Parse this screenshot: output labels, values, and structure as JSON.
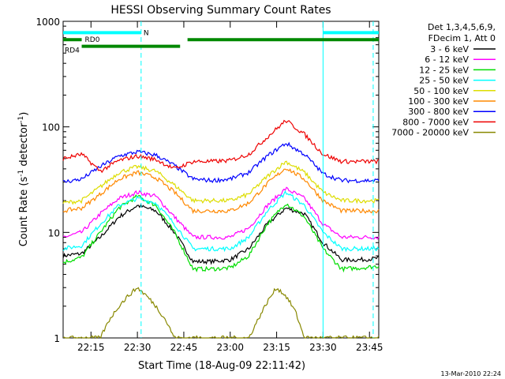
{
  "chart_data": {
    "type": "line",
    "title": "HESSI Observing Summary Count Rates",
    "xlabel": "Start Time (18-Aug-09 22:11:42)",
    "ylabel_main": "Count Rate (s",
    "ylabel_sup1": "-1",
    "ylabel_mid": " detector",
    "ylabel_sup2": "-1",
    "ylabel_end": ")",
    "y_scale": "log",
    "ylim": [
      1,
      1000
    ],
    "xlim_minutes": [
      22.1,
      23.8
    ],
    "x_ticks": [
      {
        "minute": 22.25,
        "label": "22:15"
      },
      {
        "minute": 22.5,
        "label": "22:30"
      },
      {
        "minute": 22.75,
        "label": "22:45"
      },
      {
        "minute": 23.0,
        "label": "23:00"
      },
      {
        "minute": 23.25,
        "label": "23:15"
      },
      {
        "minute": 23.5,
        "label": "23:30"
      },
      {
        "minute": 23.75,
        "label": "23:45"
      }
    ],
    "y_ticks": [
      {
        "value": 1,
        "label": "1"
      },
      {
        "value": 10,
        "label": "10"
      },
      {
        "value": 100,
        "label": "100"
      },
      {
        "value": 1000,
        "label": "1000"
      }
    ],
    "legend_header": [
      "Det 1,3,4,5,6,9,",
      "FDecim 1, Att 0"
    ],
    "legend_position": "right",
    "series": [
      {
        "name": "3 - 6 keV",
        "color": "#000000",
        "x": [
          22.1,
          22.2,
          22.3,
          22.4,
          22.5,
          22.6,
          22.7,
          22.8,
          22.9,
          23.0,
          23.1,
          23.2,
          23.3,
          23.4,
          23.5,
          23.6,
          23.7,
          23.8
        ],
        "y": [
          6,
          6.3,
          9,
          14,
          18,
          16,
          10,
          5.3,
          5.3,
          5.5,
          7,
          12,
          17,
          15,
          8,
          5.5,
          5.5,
          5.7
        ]
      },
      {
        "name": "6 - 12 keV",
        "color": "#ff00ff",
        "x": [
          22.1,
          22.2,
          22.3,
          22.4,
          22.5,
          22.6,
          22.7,
          22.8,
          22.9,
          23.0,
          23.1,
          23.2,
          23.3,
          23.4,
          23.5,
          23.6,
          23.7,
          23.8
        ],
        "y": [
          9,
          10,
          15,
          21,
          24,
          22,
          14,
          9,
          9,
          9,
          11,
          18,
          26,
          21,
          12,
          9,
          9,
          9
        ]
      },
      {
        "name": "12 - 25 keV",
        "color": "#00dd00",
        "x": [
          22.1,
          22.2,
          22.3,
          22.4,
          22.5,
          22.6,
          22.7,
          22.8,
          22.9,
          23.0,
          23.1,
          23.2,
          23.3,
          23.4,
          23.5,
          23.6,
          23.7,
          23.8
        ],
        "y": [
          5.2,
          5.8,
          10,
          17,
          22,
          18,
          10,
          4.5,
          4.5,
          4.6,
          6,
          12,
          19,
          14,
          7,
          4.5,
          4.6,
          4.8
        ]
      },
      {
        "name": "25 - 50 keV",
        "color": "#00ffff",
        "x": [
          22.1,
          22.2,
          22.3,
          22.4,
          22.5,
          22.6,
          22.7,
          22.8,
          22.9,
          23.0,
          23.1,
          23.2,
          23.3,
          23.4,
          23.5,
          23.6,
          23.7,
          23.8
        ],
        "y": [
          7,
          7.5,
          12,
          18,
          21,
          19,
          12,
          7,
          7,
          7,
          9,
          16,
          24,
          18,
          10,
          7,
          7,
          7
        ]
      },
      {
        "name": "50 - 100 keV",
        "color": "#dddd00",
        "x": [
          22.1,
          22.2,
          22.3,
          22.4,
          22.5,
          22.6,
          22.7,
          22.8,
          22.9,
          23.0,
          23.1,
          23.2,
          23.3,
          23.4,
          23.5,
          23.6,
          23.7,
          23.8
        ],
        "y": [
          19,
          20,
          27,
          37,
          42,
          38,
          28,
          20,
          20,
          20,
          23,
          34,
          47,
          37,
          24,
          20,
          20,
          20
        ]
      },
      {
        "name": "100 - 300 keV",
        "color": "#ff8800",
        "x": [
          22.1,
          22.2,
          22.3,
          22.4,
          22.5,
          22.6,
          22.7,
          22.8,
          22.9,
          23.0,
          23.1,
          23.2,
          23.3,
          23.4,
          23.5,
          23.6,
          23.7,
          23.8
        ],
        "y": [
          16,
          17,
          23,
          32,
          37,
          33,
          24,
          16,
          16,
          16,
          19,
          29,
          41,
          32,
          20,
          16,
          16,
          16
        ]
      },
      {
        "name": "300 - 800 keV",
        "color": "#0000ff",
        "x": [
          22.1,
          22.2,
          22.3,
          22.4,
          22.5,
          22.6,
          22.7,
          22.8,
          22.9,
          23.0,
          23.1,
          23.2,
          23.3,
          23.4,
          23.5,
          23.6,
          23.7,
          23.8
        ],
        "y": [
          30,
          32,
          42,
          53,
          58,
          54,
          43,
          32,
          31,
          32,
          37,
          53,
          70,
          55,
          36,
          31,
          31,
          31
        ]
      },
      {
        "name": "800 - 7000 keV",
        "color": "#ee0000",
        "x": [
          22.1,
          22.2,
          22.3,
          22.4,
          22.5,
          22.6,
          22.7,
          22.8,
          22.9,
          23.0,
          23.1,
          23.2,
          23.3,
          23.4,
          23.5,
          23.6,
          23.7,
          23.8
        ],
        "y": [
          50,
          55,
          38,
          48,
          53,
          49,
          40,
          47,
          47,
          48,
          55,
          80,
          115,
          85,
          55,
          47,
          47,
          47
        ]
      },
      {
        "name": "7000 - 20000 keV",
        "color": "#888800",
        "x": [
          22.1,
          22.3,
          22.35,
          22.4,
          22.45,
          22.5,
          22.55,
          22.6,
          22.65,
          22.7,
          22.8,
          23.1,
          23.15,
          23.2,
          23.25,
          23.3,
          23.35,
          23.4,
          23.5
        ],
        "y": [
          1,
          1,
          1.5,
          2,
          2.5,
          3,
          2.5,
          2,
          1.5,
          1,
          1,
          1,
          1.5,
          2.2,
          3,
          2.5,
          1.8,
          1,
          1
        ]
      }
    ],
    "flag_bars": [
      {
        "name": "N",
        "color": "#00ffff",
        "y": 780,
        "segments": [
          [
            22.1,
            22.52
          ],
          [
            23.5,
            23.8
          ]
        ]
      },
      {
        "name": "RD0",
        "color": "#008800",
        "y": 670,
        "segments": [
          [
            22.1,
            22.2
          ]
        ]
      },
      {
        "name": "RD4",
        "color": "#008800",
        "y": 580,
        "segments": [
          [
            22.2,
            22.73
          ]
        ]
      },
      {
        "name": "",
        "color": "#008800",
        "y": 670,
        "segments": [
          [
            22.77,
            23.8
          ]
        ]
      }
    ],
    "vertical_lines": [
      {
        "minute": 22.52,
        "color": "#00ffff",
        "style": "dashed"
      },
      {
        "minute": 23.5,
        "color": "#00ffff",
        "style": "solid"
      },
      {
        "minute": 23.77,
        "color": "#00ffff",
        "style": "dashed"
      }
    ]
  },
  "footer": {
    "timestamp": "13-Mar-2010 22:24"
  }
}
